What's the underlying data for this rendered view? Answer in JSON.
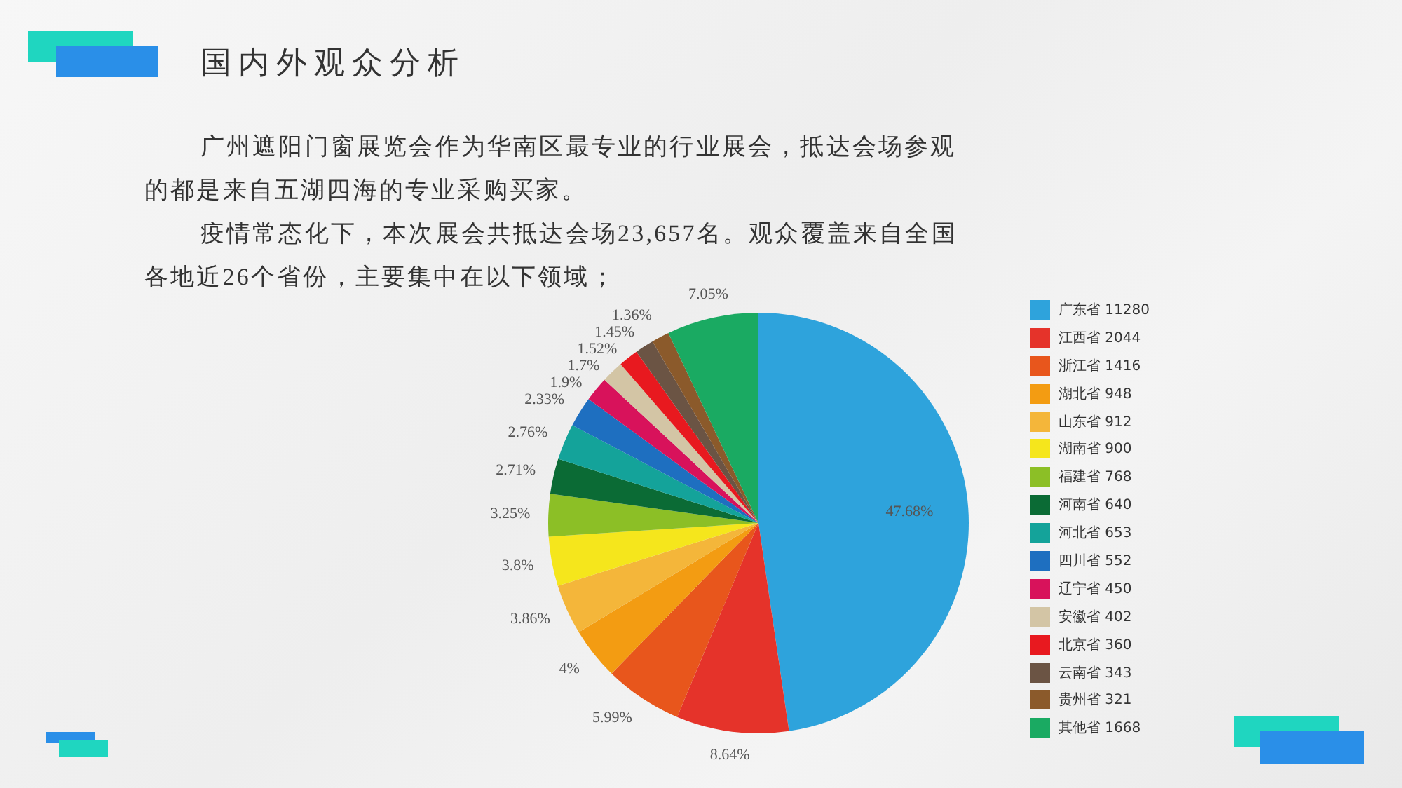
{
  "chart_data": {
    "type": "pie",
    "title": "国内外观众分析",
    "annotations": [
      "广州遮阳门窗展览会作为华南区最专业的行业展会，抵达会场参观的都是来自五湖四海的专业采购买家。",
      "疫情常态化下，本次展会共抵达会场23,657名。观众覆盖来自全国各地近26个省份，主要集中在以下领域；"
    ],
    "categories": [
      "广东省 11280",
      "江西省 2044",
      "浙江省 1416",
      "湖北省 948",
      "山东省 912",
      "湖南省 900",
      "福建省 768",
      "河南省 640",
      "河北省 653",
      "四川省 552",
      "辽宁省 450",
      "安徽省 402",
      "北京省 360",
      "云南省 343",
      "贵州省 321",
      "其他省 1668"
    ],
    "values": [
      47.68,
      8.64,
      5.99,
      4,
      3.86,
      3.8,
      3.25,
      2.71,
      2.76,
      2.33,
      1.9,
      1.7,
      1.52,
      1.45,
      1.36,
      7.05
    ],
    "colors": [
      "#2ea3dc",
      "#e5332a",
      "#e8561c",
      "#f39c12",
      "#f4b63a",
      "#f5e61c",
      "#8cbf26",
      "#0b6b35",
      "#14a39a",
      "#1e6fc0",
      "#d8125b",
      "#d3c5a5",
      "#e8191f",
      "#6b5444",
      "#8b5a2b",
      "#1aaa62"
    ],
    "value_labels": [
      "47.68%",
      "8.64%",
      "5.99%",
      "4%",
      "3.86%",
      "3.8%",
      "3.25%",
      "2.71%",
      "2.76%",
      "2.33%",
      "1.9%",
      "1.7%",
      "1.52%",
      "1.45%",
      "1.36%",
      "7.05%"
    ],
    "legend": "right"
  }
}
